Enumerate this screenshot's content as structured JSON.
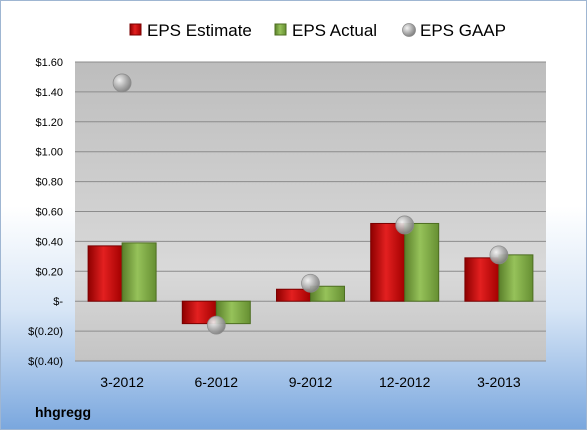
{
  "chart_data": {
    "type": "bar",
    "categories": [
      "3-2012",
      "6-2012",
      "9-2012",
      "12-2012",
      "3-2013"
    ],
    "series": [
      {
        "name": "EPS Estimate",
        "values": [
          0.37,
          -0.15,
          0.08,
          0.52,
          0.29
        ],
        "color": "#cc0000"
      },
      {
        "name": "EPS Actual",
        "values": [
          0.39,
          -0.15,
          0.1,
          0.52,
          0.31
        ],
        "color": "#77a43a"
      }
    ],
    "gaap": {
      "name": "EPS GAAP",
      "values": [
        1.46,
        -0.16,
        0.12,
        0.51,
        0.31
      ],
      "color": "#b0b0b0"
    },
    "ylim": [
      -0.4,
      1.6
    ],
    "yticks": [
      {
        "value": 1.6,
        "label": "$1.60"
      },
      {
        "value": 1.4,
        "label": "$1.40"
      },
      {
        "value": 1.2,
        "label": "$1.20"
      },
      {
        "value": 1.0,
        "label": "$1.00"
      },
      {
        "value": 0.8,
        "label": "$0.80"
      },
      {
        "value": 0.6,
        "label": "$0.60"
      },
      {
        "value": 0.4,
        "label": "$0.40"
      },
      {
        "value": 0.2,
        "label": "$0.20"
      },
      {
        "value": 0.0,
        "label": "$-"
      },
      {
        "value": -0.2,
        "label": "$(0.20)"
      },
      {
        "value": -0.4,
        "label": "$(0.40)"
      }
    ],
    "grid": true,
    "legend_position": "top"
  },
  "company_label": "hhgregg"
}
